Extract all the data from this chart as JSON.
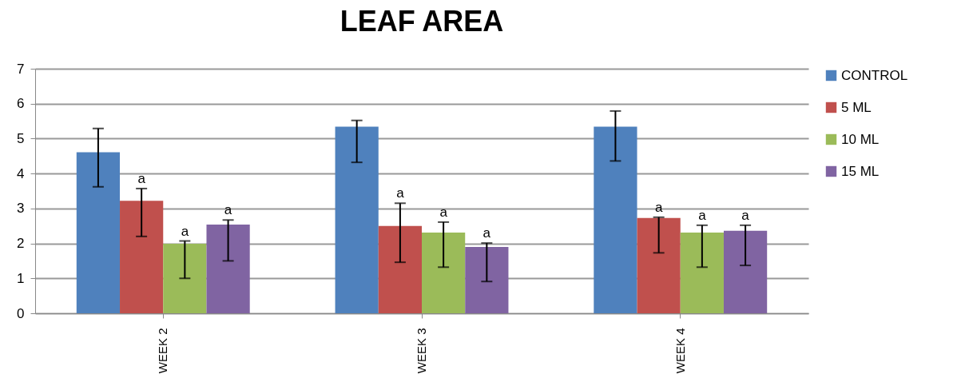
{
  "chart_data": {
    "type": "bar",
    "title": "LEAF AREA",
    "categories": [
      "WEEK 2",
      "WEEK 3",
      "WEEK 4"
    ],
    "series": [
      {
        "name": "CONTROL",
        "color": "#4f81bd",
        "values": [
          4.61,
          5.34,
          5.34
        ],
        "errors": [
          [
            3.62,
            5.29
          ],
          [
            4.32,
            5.52
          ],
          [
            4.36,
            5.79
          ]
        ]
      },
      {
        "name": "5 ML",
        "color": "#c0504d",
        "values": [
          3.22,
          2.5,
          2.73
        ],
        "errors": [
          [
            2.2,
            3.57
          ],
          [
            1.46,
            3.15
          ],
          [
            1.73,
            2.75
          ]
        ],
        "value_labels": [
          "a",
          "a",
          "a"
        ]
      },
      {
        "name": "10 ML",
        "color": "#9bbb59",
        "values": [
          1.99,
          2.31,
          2.31
        ],
        "errors": [
          [
            1.0,
            2.07
          ],
          [
            1.32,
            2.61
          ],
          [
            1.32,
            2.52
          ]
        ],
        "value_labels": [
          "a",
          "a",
          "a"
        ]
      },
      {
        "name": "15 ML",
        "color": "#8064a2",
        "values": [
          2.54,
          1.9,
          2.36
        ],
        "errors": [
          [
            1.5,
            2.67
          ],
          [
            0.91,
            2.01
          ],
          [
            1.37,
            2.52
          ]
        ],
        "value_labels": [
          "a",
          "a",
          "a"
        ]
      }
    ],
    "ylim": [
      0,
      7
    ],
    "yticks": [
      0,
      1,
      2,
      3,
      4,
      5,
      6,
      7
    ],
    "grid": "y",
    "legend": "right"
  }
}
